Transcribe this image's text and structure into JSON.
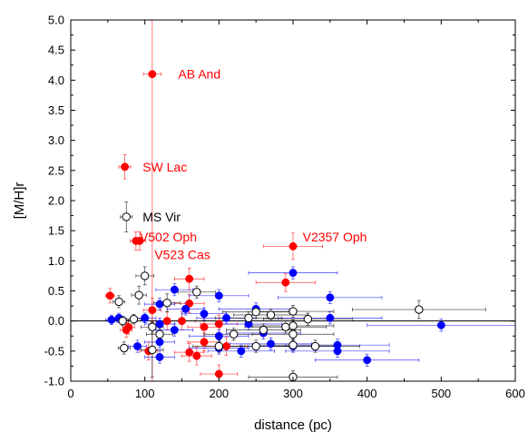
{
  "chart_data": {
    "type": "scatter",
    "xlabel": "distance (pc)",
    "ylabel": "[M/H]r",
    "xlim": [
      0,
      600
    ],
    "ylim": [
      -1.0,
      5.0
    ],
    "xticks": [
      0,
      100,
      200,
      300,
      400,
      500,
      600
    ],
    "yticks": [
      -1.0,
      -0.5,
      0.0,
      0.5,
      1.0,
      1.5,
      2.0,
      2.5,
      3.0,
      3.5,
      4.0,
      4.5,
      5.0
    ],
    "xtick_labels": [
      "0",
      "100",
      "200",
      "300",
      "400",
      "500",
      "600"
    ],
    "ytick_labels": [
      "-1.0",
      "-0.5",
      "0.0",
      "0.5",
      "1.0",
      "1.5",
      "2.0",
      "2.5",
      "3.0",
      "3.5",
      "4.0",
      "4.5",
      "5.0"
    ],
    "reference_line_y": 0,
    "series": [
      {
        "color": "#ff0000",
        "marker": "filled-circle",
        "points": [
          {
            "x": 110,
            "y": 4.1,
            "xerr": 12,
            "yerr": 6.0
          },
          {
            "x": 73,
            "y": 2.56,
            "xerr": 8,
            "yerr": 0.2
          },
          {
            "x": 88,
            "y": 1.33,
            "xerr": 8,
            "yerr": 0.15
          },
          {
            "x": 93,
            "y": 1.33,
            "xerr": 8,
            "yerr": 0.15
          },
          {
            "x": 300,
            "y": 1.24,
            "xerr": 40,
            "yerr": 0.22
          },
          {
            "x": 290,
            "y": 0.64,
            "xerr": 40,
            "yerr": 0.15
          },
          {
            "x": 160,
            "y": 0.7,
            "xerr": 20,
            "yerr": 0.18
          },
          {
            "x": 53,
            "y": 0.42,
            "xerr": 6,
            "yerr": 0.12
          },
          {
            "x": 110,
            "y": 0.18,
            "xerr": 12,
            "yerr": 0.2
          },
          {
            "x": 160,
            "y": 0.29,
            "xerr": 20,
            "yerr": 0.15
          },
          {
            "x": 130,
            "y": 0.0,
            "xerr": 15,
            "yerr": 0.15
          },
          {
            "x": 150,
            "y": 0.0,
            "xerr": 18,
            "yerr": 0.15
          },
          {
            "x": 200,
            "y": -0.05,
            "xerr": 25,
            "yerr": 0.15
          },
          {
            "x": 75,
            "y": -0.15,
            "xerr": 8,
            "yerr": 0.12
          },
          {
            "x": 180,
            "y": -0.1,
            "xerr": 22,
            "yerr": 0.15
          },
          {
            "x": 210,
            "y": -0.42,
            "xerr": 28,
            "yerr": 0.15
          },
          {
            "x": 180,
            "y": -0.35,
            "xerr": 22,
            "yerr": 0.15
          },
          {
            "x": 160,
            "y": -0.52,
            "xerr": 20,
            "yerr": 0.15
          },
          {
            "x": 170,
            "y": -0.58,
            "xerr": 20,
            "yerr": 0.15
          },
          {
            "x": 105,
            "y": -0.5,
            "xerr": 12,
            "yerr": 0.15
          },
          {
            "x": 200,
            "y": -0.88,
            "xerr": 25,
            "yerr": 0.15
          },
          {
            "x": 78,
            "y": -0.1,
            "xerr": 8,
            "yerr": 0.12
          }
        ]
      },
      {
        "color": "#0000ff",
        "marker": "filled-circle",
        "points": [
          {
            "x": 300,
            "y": 0.8,
            "xerr": 60,
            "yerr": 0.1
          },
          {
            "x": 140,
            "y": 0.52,
            "xerr": 25,
            "yerr": 0.1
          },
          {
            "x": 200,
            "y": 0.42,
            "xerr": 40,
            "yerr": 0.1
          },
          {
            "x": 350,
            "y": 0.39,
            "xerr": 70,
            "yerr": 0.1
          },
          {
            "x": 120,
            "y": 0.28,
            "xerr": 20,
            "yerr": 0.1
          },
          {
            "x": 250,
            "y": 0.2,
            "xerr": 50,
            "yerr": 0.1
          },
          {
            "x": 155,
            "y": 0.2,
            "xerr": 25,
            "yerr": 0.1
          },
          {
            "x": 180,
            "y": 0.12,
            "xerr": 30,
            "yerr": 0.1
          },
          {
            "x": 55,
            "y": 0.02,
            "xerr": 8,
            "yerr": 0.08
          },
          {
            "x": 100,
            "y": 0.05,
            "xerr": 15,
            "yerr": 0.08
          },
          {
            "x": 210,
            "y": 0.05,
            "xerr": 40,
            "yerr": 0.1
          },
          {
            "x": 350,
            "y": 0.05,
            "xerr": 70,
            "yerr": 0.1
          },
          {
            "x": 65,
            "y": 0.05,
            "xerr": 8,
            "yerr": 0.08
          },
          {
            "x": 120,
            "y": -0.05,
            "xerr": 20,
            "yerr": 0.1
          },
          {
            "x": 240,
            "y": -0.05,
            "xerr": 45,
            "yerr": 0.1
          },
          {
            "x": 500,
            "y": -0.07,
            "xerr": 100,
            "yerr": 0.1
          },
          {
            "x": 140,
            "y": -0.15,
            "xerr": 25,
            "yerr": 0.1
          },
          {
            "x": 260,
            "y": -0.2,
            "xerr": 50,
            "yerr": 0.1
          },
          {
            "x": 200,
            "y": -0.25,
            "xerr": 40,
            "yerr": 0.1
          },
          {
            "x": 120,
            "y": -0.35,
            "xerr": 20,
            "yerr": 0.1
          },
          {
            "x": 270,
            "y": -0.38,
            "xerr": 55,
            "yerr": 0.1
          },
          {
            "x": 360,
            "y": -0.4,
            "xerr": 70,
            "yerr": 0.1
          },
          {
            "x": 90,
            "y": -0.42,
            "xerr": 12,
            "yerr": 0.1
          },
          {
            "x": 200,
            "y": -0.45,
            "xerr": 40,
            "yerr": 0.1
          },
          {
            "x": 360,
            "y": -0.5,
            "xerr": 70,
            "yerr": 0.1
          },
          {
            "x": 120,
            "y": -0.6,
            "xerr": 20,
            "yerr": 0.1
          },
          {
            "x": 400,
            "y": -0.65,
            "xerr": 70,
            "yerr": 0.1
          },
          {
            "x": 300,
            "y": -0.42,
            "xerr": 60,
            "yerr": 0.1
          },
          {
            "x": 230,
            "y": -0.5,
            "xerr": 45,
            "yerr": 0.1
          }
        ]
      },
      {
        "color": "#000000",
        "marker": "open-circle",
        "points": [
          {
            "x": 75,
            "y": 1.73,
            "xerr": 8,
            "yerr": 0.25
          },
          {
            "x": 100,
            "y": 0.75,
            "xerr": 12,
            "yerr": 0.15
          },
          {
            "x": 170,
            "y": 0.48,
            "xerr": 25,
            "yerr": 0.1
          },
          {
            "x": 470,
            "y": 0.19,
            "xerr": 90,
            "yerr": 0.15
          },
          {
            "x": 92,
            "y": 0.43,
            "xerr": 10,
            "yerr": 0.15
          },
          {
            "x": 130,
            "y": 0.3,
            "xerr": 18,
            "yerr": 0.15
          },
          {
            "x": 65,
            "y": 0.32,
            "xerr": 8,
            "yerr": 0.1
          },
          {
            "x": 250,
            "y": 0.15,
            "xerr": 45,
            "yerr": 0.1
          },
          {
            "x": 300,
            "y": 0.16,
            "xerr": 55,
            "yerr": 0.1
          },
          {
            "x": 270,
            "y": 0.1,
            "xerr": 50,
            "yerr": 0.1
          },
          {
            "x": 240,
            "y": 0.05,
            "xerr": 45,
            "yerr": 0.1
          },
          {
            "x": 320,
            "y": 0.03,
            "xerr": 60,
            "yerr": 0.1
          },
          {
            "x": 70,
            "y": 0.0,
            "xerr": 8,
            "yerr": 0.08
          },
          {
            "x": 85,
            "y": 0.03,
            "xerr": 10,
            "yerr": 0.08
          },
          {
            "x": 110,
            "y": -0.1,
            "xerr": 15,
            "yerr": 0.1
          },
          {
            "x": 290,
            "y": -0.1,
            "xerr": 55,
            "yerr": 0.1
          },
          {
            "x": 260,
            "y": -0.15,
            "xerr": 50,
            "yerr": 0.1
          },
          {
            "x": 300,
            "y": -0.08,
            "xerr": 55,
            "yerr": 0.1
          },
          {
            "x": 300,
            "y": -0.22,
            "xerr": 55,
            "yerr": 0.1
          },
          {
            "x": 220,
            "y": -0.22,
            "xerr": 40,
            "yerr": 0.1
          },
          {
            "x": 120,
            "y": -0.22,
            "xerr": 18,
            "yerr": 0.1
          },
          {
            "x": 250,
            "y": -0.42,
            "xerr": 45,
            "yerr": 0.1
          },
          {
            "x": 330,
            "y": -0.42,
            "xerr": 60,
            "yerr": 0.1
          },
          {
            "x": 300,
            "y": -0.4,
            "xerr": 55,
            "yerr": 0.1
          },
          {
            "x": 200,
            "y": -0.42,
            "xerr": 35,
            "yerr": 0.1
          },
          {
            "x": 72,
            "y": -0.45,
            "xerr": 8,
            "yerr": 0.1
          },
          {
            "x": 110,
            "y": -0.48,
            "xerr": 15,
            "yerr": 0.45
          },
          {
            "x": 300,
            "y": -0.93,
            "xerr": 60,
            "yerr": 0.1
          }
        ]
      }
    ],
    "annotations": [
      {
        "text": "AB And",
        "x": 145,
        "y": 4.1,
        "color": "#ff0000"
      },
      {
        "text": "SW Lac",
        "x": 97,
        "y": 2.56,
        "color": "#ff0000"
      },
      {
        "text": "MS Vir",
        "x": 97,
        "y": 1.73,
        "color": "#000000"
      },
      {
        "text": "V502 Oph",
        "x": 93,
        "y": 1.4,
        "color": "#ff0000"
      },
      {
        "text": "V523 Cas",
        "x": 113,
        "y": 1.1,
        "color": "#ff0000"
      },
      {
        "text": "V2357 Oph",
        "x": 313,
        "y": 1.4,
        "color": "#ff0000"
      }
    ]
  }
}
